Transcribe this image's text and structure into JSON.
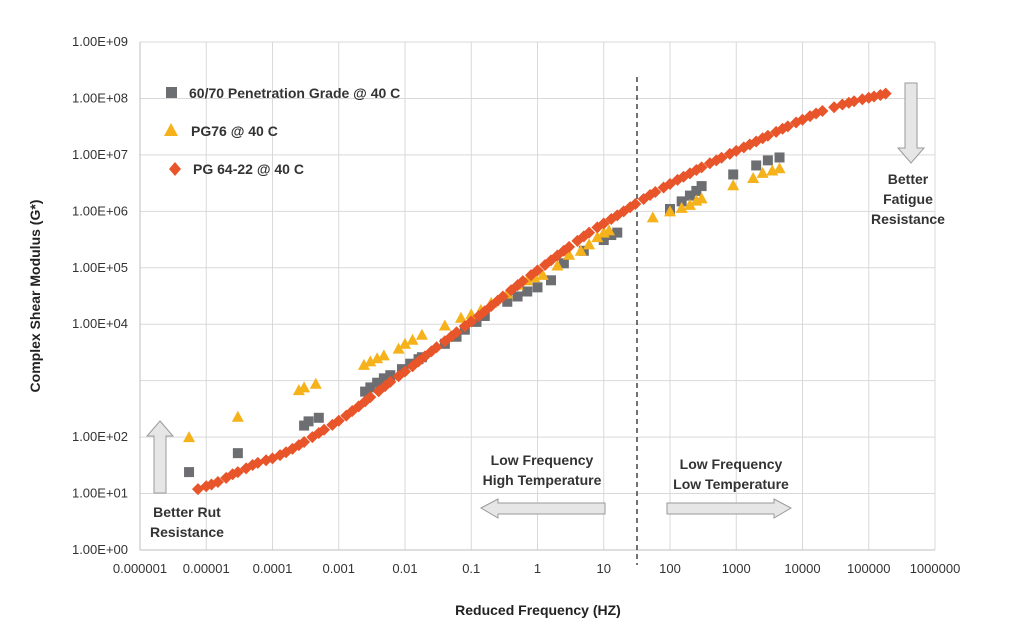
{
  "chart_data": {
    "type": "scatter",
    "title": "",
    "xlabel": "Reduced Frequency (HZ)",
    "ylabel": "Complex Shear Modulus (G*)",
    "x_scale": "log",
    "y_scale": "log",
    "xlim": [
      1e-06,
      1000000
    ],
    "ylim": [
      1,
      1000000000
    ],
    "grid": true,
    "legend_position": "top-left",
    "x_tick_labels": [
      "0.000001",
      "0.00001",
      "0.0001",
      "0.001",
      "0.01",
      "0.1",
      "1",
      "10",
      "100",
      "1000",
      "10000",
      "100000",
      "1000000"
    ],
    "y_tick_labels": [
      "1.00E+00",
      "1.00E+01",
      "1.00E+02",
      "1.00E+04",
      "1.00E+05",
      "1.00E+06",
      "1.00E+07",
      "1.00E+08",
      "1.00E+09"
    ],
    "series": [
      {
        "name": "60/70 Penetration Grade @ 40 C",
        "marker": "square",
        "color": "#6d6e71",
        "points": [
          [
            5.5e-06,
            24
          ],
          [
            3e-05,
            52
          ],
          [
            0.0003,
            160
          ],
          [
            0.00035,
            190
          ],
          [
            0.0005,
            220
          ],
          [
            0.0025,
            640
          ],
          [
            0.003,
            760
          ],
          [
            0.0038,
            920
          ],
          [
            0.0048,
            1100
          ],
          [
            0.006,
            1250
          ],
          [
            0.009,
            1600
          ],
          [
            0.012,
            2000
          ],
          [
            0.016,
            2400
          ],
          [
            0.018,
            2600
          ],
          [
            0.04,
            4500
          ],
          [
            0.06,
            6000
          ],
          [
            0.08,
            8000
          ],
          [
            0.12,
            11000
          ],
          [
            0.16,
            14000
          ],
          [
            0.35,
            25000
          ],
          [
            0.5,
            31000
          ],
          [
            0.7,
            38000
          ],
          [
            1.0,
            45000
          ],
          [
            1.6,
            60000
          ],
          [
            2.5,
            120000
          ],
          [
            5,
            200000
          ],
          [
            10,
            310000
          ],
          [
            13,
            380000
          ],
          [
            16,
            420000
          ],
          [
            100,
            1100000
          ],
          [
            150,
            1500000
          ],
          [
            200,
            1900000
          ],
          [
            250,
            2300000
          ],
          [
            300,
            2800000
          ],
          [
            900,
            4500000
          ],
          [
            2000,
            6500000
          ],
          [
            3000,
            8000000
          ],
          [
            4500,
            9000000
          ]
        ]
      },
      {
        "name": "PG76 @ 40 C",
        "marker": "triangle",
        "color": "#f5b21b",
        "points": [
          [
            5.5e-06,
            100
          ],
          [
            3e-05,
            230
          ],
          [
            0.00025,
            680
          ],
          [
            0.0003,
            760
          ],
          [
            0.00045,
            880
          ],
          [
            0.0024,
            1900
          ],
          [
            0.003,
            2200
          ],
          [
            0.0038,
            2500
          ],
          [
            0.0048,
            2800
          ],
          [
            0.008,
            3700
          ],
          [
            0.01,
            4500
          ],
          [
            0.013,
            5300
          ],
          [
            0.018,
            6500
          ],
          [
            0.04,
            9500
          ],
          [
            0.07,
            13000
          ],
          [
            0.1,
            15000
          ],
          [
            0.14,
            18000
          ],
          [
            0.2,
            24000
          ],
          [
            0.35,
            35000
          ],
          [
            0.5,
            50000
          ],
          [
            0.7,
            60000
          ],
          [
            0.9,
            68000
          ],
          [
            1.2,
            75000
          ],
          [
            2,
            110000
          ],
          [
            3,
            170000
          ],
          [
            4.5,
            200000
          ],
          [
            6,
            260000
          ],
          [
            8,
            350000
          ],
          [
            10,
            420000
          ],
          [
            12,
            460000
          ],
          [
            55,
            780000
          ],
          [
            100,
            1000000
          ],
          [
            150,
            1150000
          ],
          [
            200,
            1300000
          ],
          [
            250,
            1550000
          ],
          [
            300,
            1700000
          ],
          [
            900,
            2900000
          ],
          [
            1800,
            3900000
          ],
          [
            2500,
            4800000
          ],
          [
            3500,
            5300000
          ],
          [
            4500,
            5800000
          ]
        ]
      },
      {
        "name": "PG 64-22 @ 40 C",
        "marker": "diamond",
        "color": "#e8552a",
        "points": [
          [
            7.5e-06,
            12
          ],
          [
            1e-05,
            13.5
          ],
          [
            1.2e-05,
            14.5
          ],
          [
            1.5e-05,
            16
          ],
          [
            2e-05,
            19
          ],
          [
            2.5e-05,
            22
          ],
          [
            3e-05,
            24
          ],
          [
            4e-05,
            28
          ],
          [
            5e-05,
            32
          ],
          [
            6e-05,
            35
          ],
          [
            8e-05,
            39
          ],
          [
            0.0001,
            42
          ],
          [
            0.00013,
            48
          ],
          [
            0.00016,
            54
          ],
          [
            0.0002,
            62
          ],
          [
            0.00025,
            72
          ],
          [
            0.0003,
            82
          ],
          [
            0.0004,
            100
          ],
          [
            0.0005,
            118
          ],
          [
            0.0006,
            135
          ],
          [
            0.0008,
            165
          ],
          [
            0.001,
            195
          ],
          [
            0.0013,
            240
          ],
          [
            0.0016,
            290
          ],
          [
            0.002,
            350
          ],
          [
            0.0025,
            430
          ],
          [
            0.003,
            510
          ],
          [
            0.004,
            650
          ],
          [
            0.005,
            800
          ],
          [
            0.006,
            950
          ],
          [
            0.008,
            1200
          ],
          [
            0.01,
            1450
          ],
          [
            0.013,
            1800
          ],
          [
            0.016,
            2200
          ],
          [
            0.02,
            2700
          ],
          [
            0.025,
            3300
          ],
          [
            0.03,
            3900
          ],
          [
            0.04,
            5000
          ],
          [
            0.05,
            6100
          ],
          [
            0.06,
            7200
          ],
          [
            0.08,
            9200
          ],
          [
            0.1,
            11200
          ],
          [
            0.13,
            14000
          ],
          [
            0.16,
            17000
          ],
          [
            0.2,
            21000
          ],
          [
            0.25,
            26000
          ],
          [
            0.3,
            31000
          ],
          [
            0.4,
            40000
          ],
          [
            0.5,
            49000
          ],
          [
            0.6,
            58000
          ],
          [
            0.8,
            74000
          ],
          [
            1.0,
            90000
          ],
          [
            1.3,
            112000
          ],
          [
            1.6,
            135000
          ],
          [
            2.0,
            165000
          ],
          [
            2.5,
            200000
          ],
          [
            3.0,
            235000
          ],
          [
            4.0,
            300000
          ],
          [
            5.0,
            360000
          ],
          [
            6.0,
            420000
          ],
          [
            8.0,
            520000
          ],
          [
            10,
            610000
          ],
          [
            13,
            730000
          ],
          [
            16,
            850000
          ],
          [
            20,
            1000000
          ],
          [
            25,
            1180000
          ],
          [
            30,
            1350000
          ],
          [
            40,
            1650000
          ],
          [
            50,
            1950000
          ],
          [
            60,
            2200000
          ],
          [
            80,
            2650000
          ],
          [
            100,
            3050000
          ],
          [
            130,
            3600000
          ],
          [
            160,
            4100000
          ],
          [
            200,
            4700000
          ],
          [
            250,
            5400000
          ],
          [
            300,
            6000000
          ],
          [
            400,
            7100000
          ],
          [
            500,
            8000000
          ],
          [
            600,
            8900000
          ],
          [
            800,
            10400000
          ],
          [
            1000,
            11800000
          ],
          [
            1300,
            13600000
          ],
          [
            1600,
            15300000
          ],
          [
            2000,
            17300000
          ],
          [
            2500,
            19700000
          ],
          [
            3000,
            21800000
          ],
          [
            4000,
            25600000
          ],
          [
            5000,
            29000000
          ],
          [
            6000,
            32000000
          ],
          [
            8000,
            37500000
          ],
          [
            10000,
            42000000
          ],
          [
            13000,
            48500000
          ],
          [
            16000,
            54000000
          ],
          [
            20000,
            60000000
          ],
          [
            30000,
            70000000
          ],
          [
            40000,
            78000000
          ],
          [
            50000,
            84000000
          ],
          [
            60000,
            89000000
          ],
          [
            80000,
            97000000
          ],
          [
            100000,
            103000000
          ],
          [
            120000,
            108000000
          ],
          [
            150000,
            115000000
          ],
          [
            180000,
            122000000
          ]
        ]
      }
    ],
    "annotations": [
      {
        "id": "rut",
        "lines": [
          "Better Rut",
          "Resistance"
        ]
      },
      {
        "id": "fatigue",
        "lines": [
          "Better",
          "Fatigue",
          "Resistance"
        ]
      },
      {
        "id": "lowfreq_hightemp",
        "lines": [
          "Low Frequency",
          "High Temperature"
        ]
      },
      {
        "id": "lowfreq_lowtemp",
        "lines": [
          "Low Frequency",
          "Low Temperature"
        ]
      }
    ]
  }
}
